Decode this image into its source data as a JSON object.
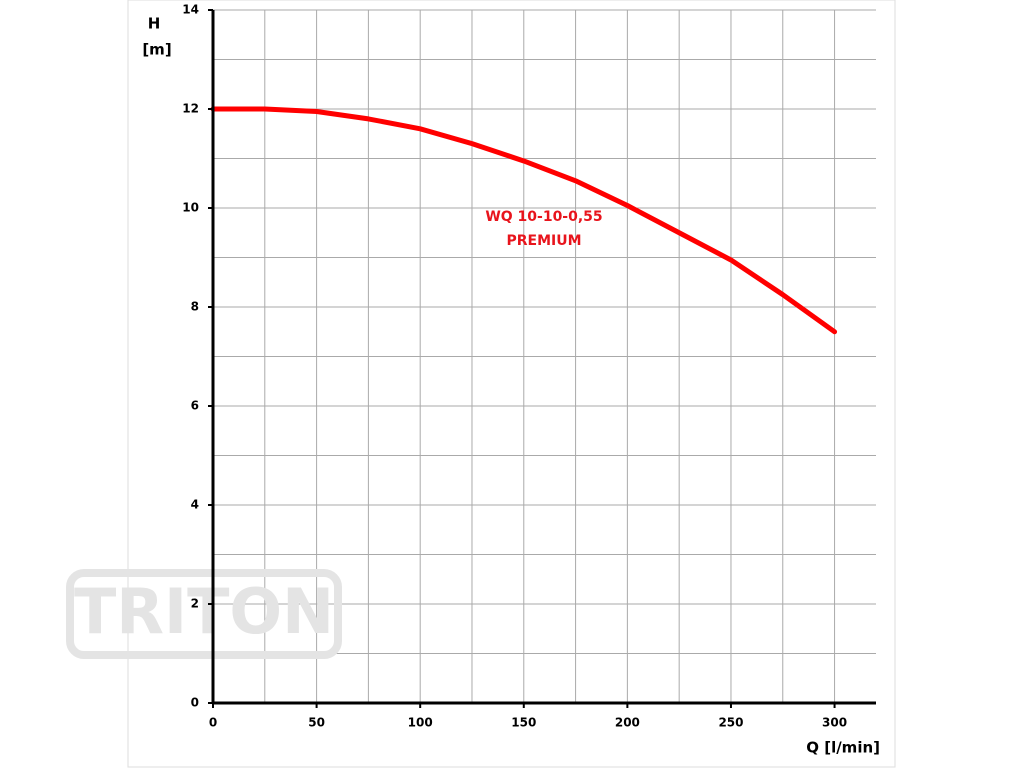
{
  "chart_data": {
    "type": "line",
    "y_label": [
      "H",
      "[m]"
    ],
    "x_label": "Q [l/min]",
    "annotation": [
      "WQ 10-10-0,55",
      "PREMIUM"
    ],
    "watermark": "TRITON",
    "x": [
      0,
      25,
      50,
      75,
      100,
      125,
      150,
      175,
      200,
      225,
      250,
      275,
      300
    ],
    "series": [
      {
        "color": "#ff0000",
        "values": [
          12.0,
          12.0,
          11.95,
          11.8,
          11.6,
          11.3,
          10.95,
          10.55,
          10.05,
          9.5,
          8.95,
          8.25,
          7.5
        ]
      }
    ],
    "xlim": [
      0,
      320
    ],
    "xticks": [
      0,
      50,
      100,
      150,
      200,
      250,
      300
    ],
    "ylim": [
      0,
      14
    ],
    "yticks": [
      0,
      2,
      4,
      6,
      8,
      10,
      12,
      14
    ],
    "grid": true,
    "minor_grid": true
  }
}
